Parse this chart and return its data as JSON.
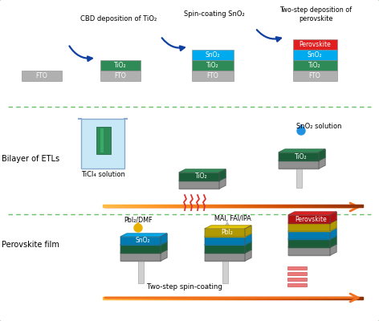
{
  "bg_color": "#ffffff",
  "border_color": "#4db848",
  "dash_color": "#6abf69",
  "colors": {
    "FTO": "#b0b0b0",
    "TiO2": "#2e8b57",
    "TiO2_dark": "#1a5c38",
    "TiO2_side": "#246b45",
    "SnO2": "#00aaee",
    "SnO2_dark": "#007ab0",
    "SnO2_side": "#0090c8",
    "Perovskite": "#e02020",
    "Perovskite_dark": "#b01010",
    "PbI2": "#e8c800",
    "PbI2_dark": "#b09800",
    "gray_sub": "#c8c8c8",
    "gray_sub_dark": "#909090",
    "orange": "#f07020",
    "blue_arrow": "#1040a0",
    "beaker_fill": "#c8e8f8",
    "beaker_border": "#88aacc",
    "drop_blue": "#2090e0",
    "drop_yellow": "#e8b000",
    "drop_gray": "#bbbbbb",
    "heat_red": "#e03030",
    "white": "#ffffff",
    "pedestal": "#d0d0d0",
    "pedestal_dark": "#a8a8a8"
  },
  "label_p1": "CBD deposition of TiO₂",
  "label_p2": "Spin-coating SnO₂",
  "label_p3": "Two-step deposition of\nperovskite",
  "label_bilayer": "Bilayer of ETLs",
  "label_perovskite_film": "Perovskite film",
  "label_ticl4": "TiCl₄ solution",
  "label_sno2_sol": "SnO₂ solution",
  "label_pbidmf": "PbI₂/DMF",
  "label_mai": "MAI, FAI/IPA",
  "label_twostep": "Two-step spin-coating"
}
